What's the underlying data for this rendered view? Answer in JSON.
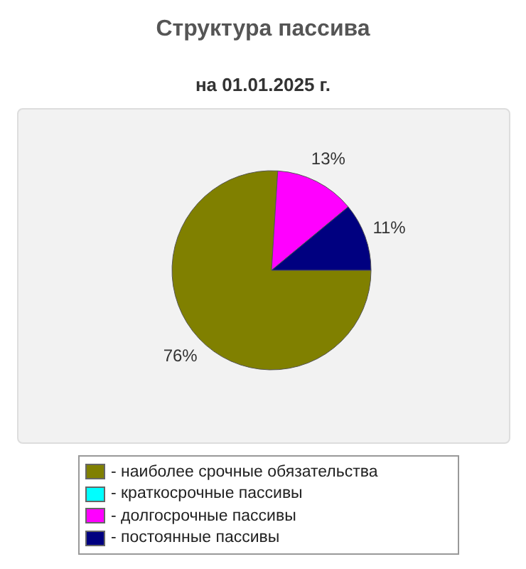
{
  "chart_data": {
    "type": "pie",
    "title": "Структура пассива",
    "subtitle": "на 01.01.2025 г.",
    "categories": [
      "- наиболее срочные обязательства",
      "- краткосрочные пассивы",
      "- долгосрочные пассивы",
      "- постоянные пассивы"
    ],
    "values": [
      76,
      0,
      13,
      11
    ],
    "colors": [
      "#808000",
      "#00ffff",
      "#ff00ff",
      "#000080"
    ],
    "value_labels": [
      "76%",
      null,
      "13%",
      "11%"
    ],
    "legend": "bottom"
  }
}
